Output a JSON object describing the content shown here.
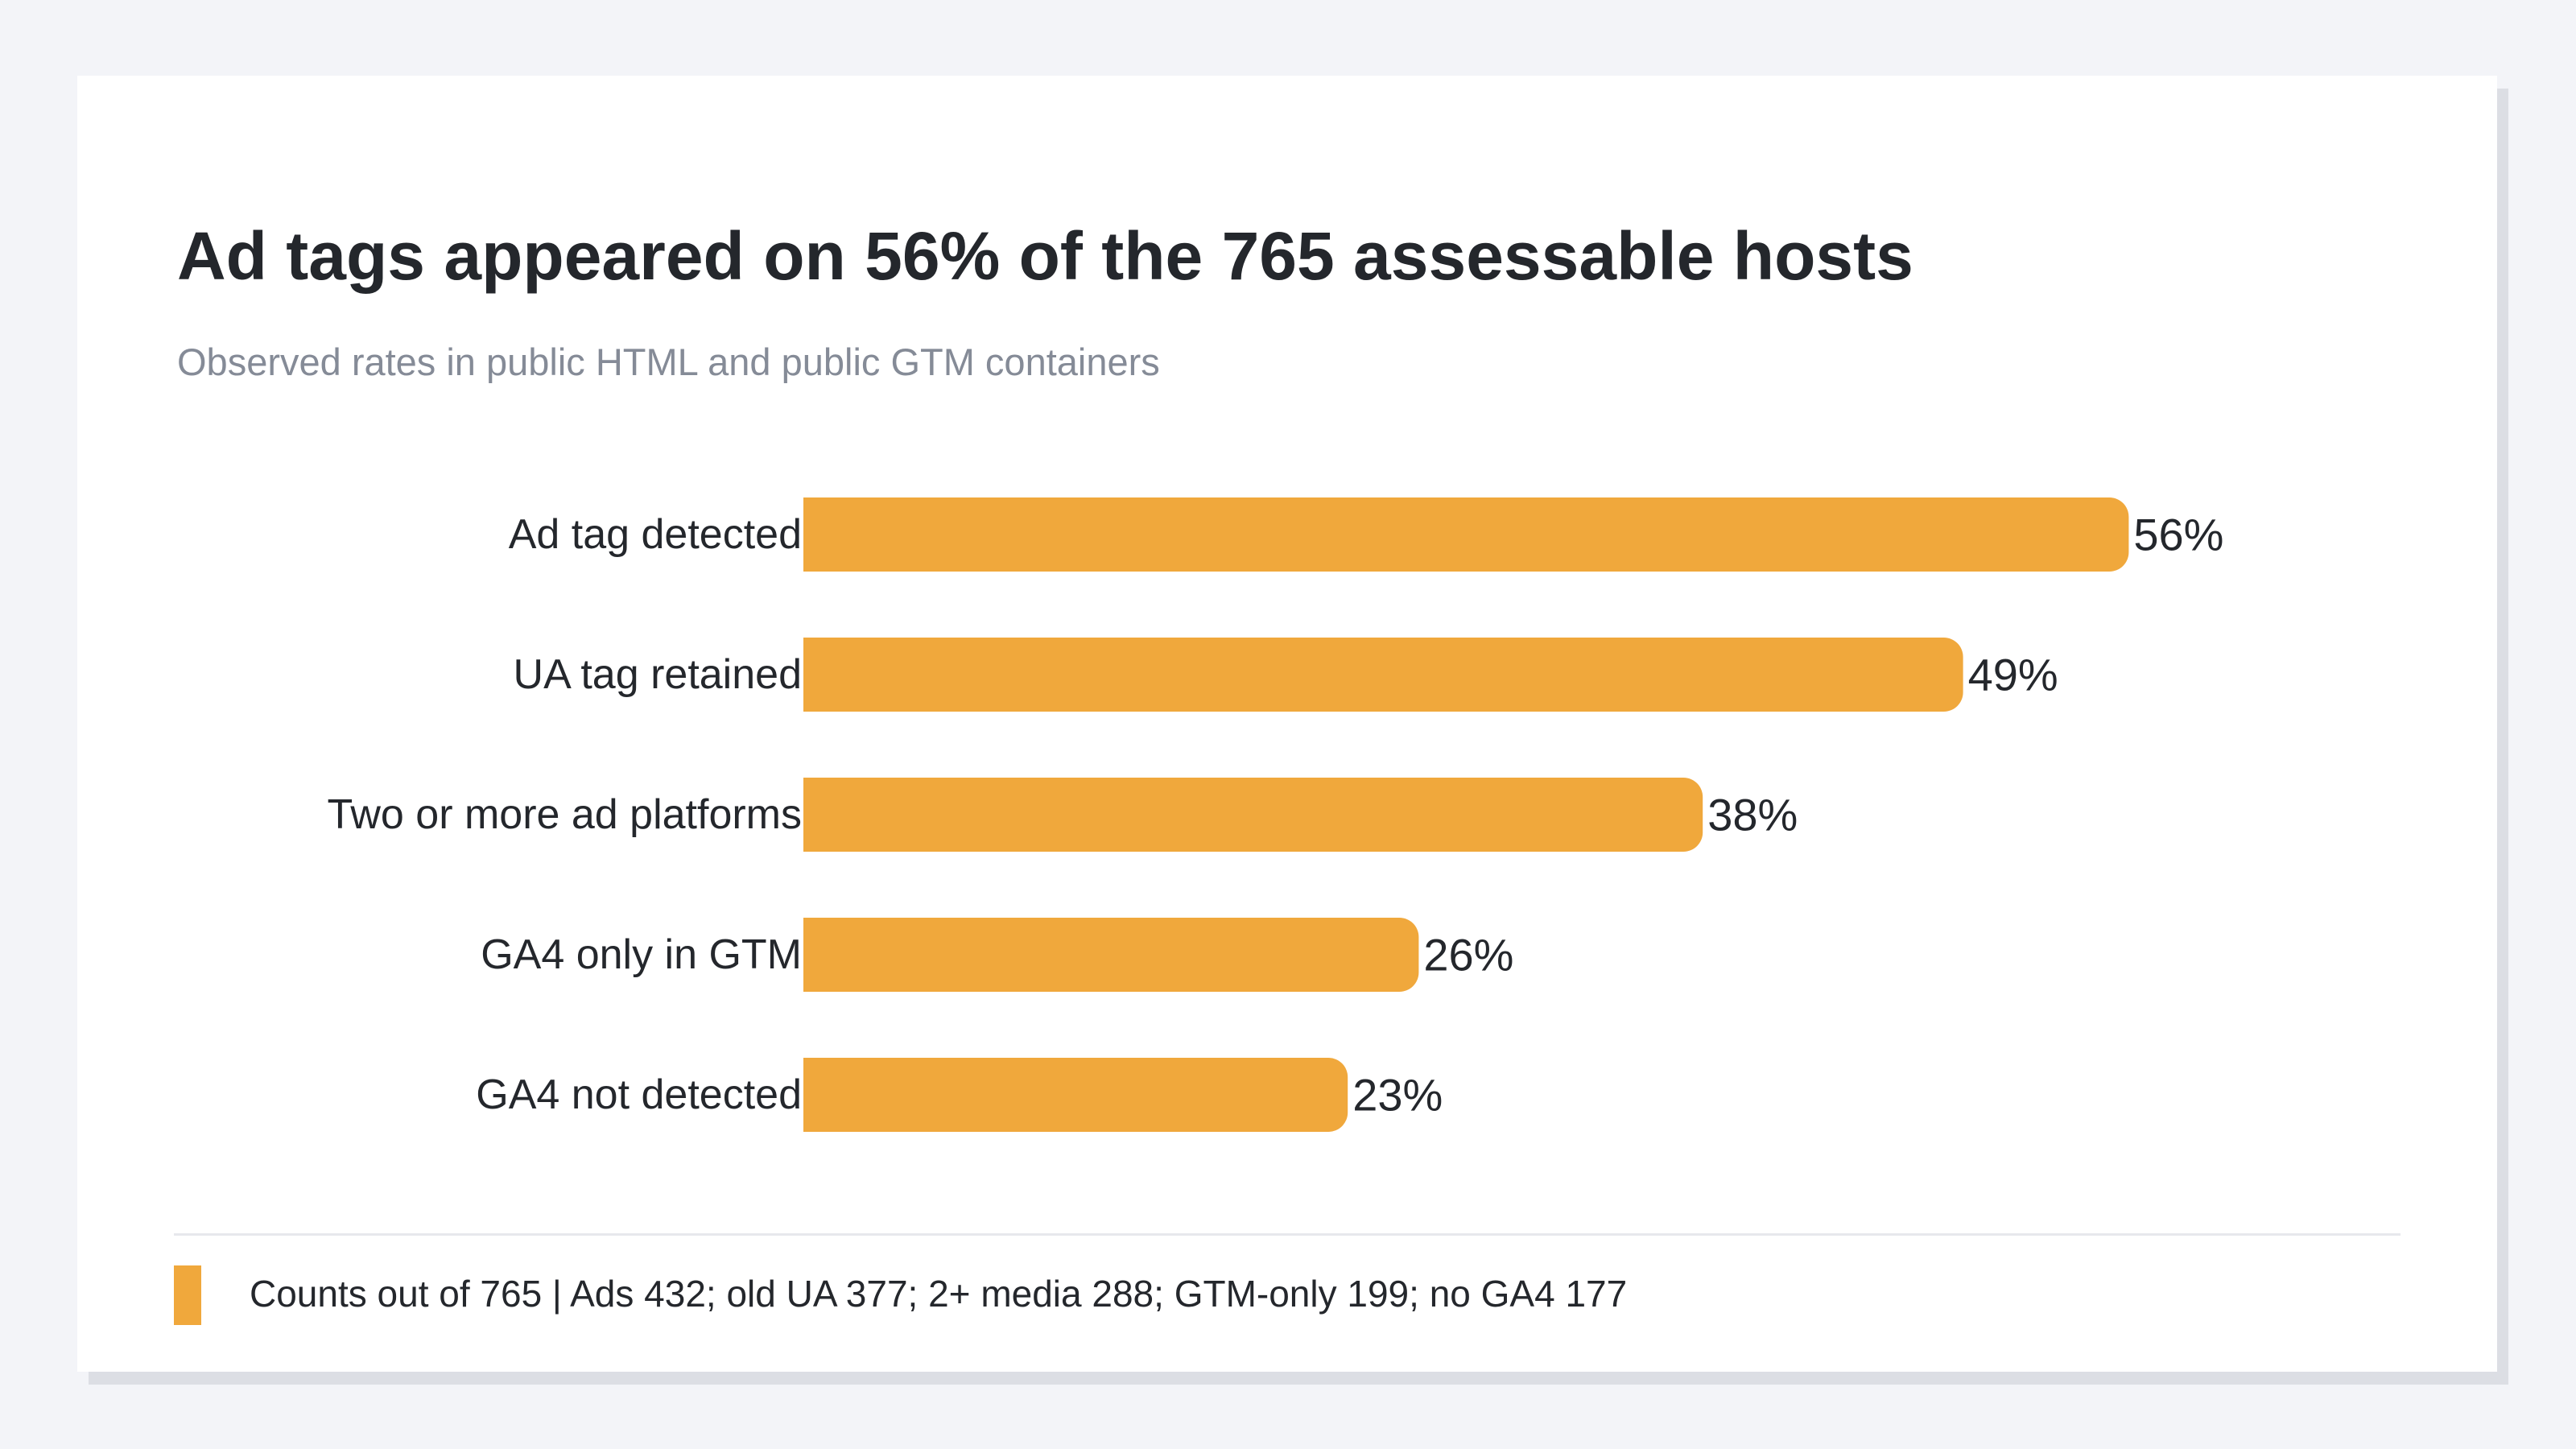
{
  "header": {
    "title": "Ad tags appeared on 56% of the 765 assessable hosts",
    "subtitle": "Observed rates in public HTML and public GTM containers"
  },
  "colors": {
    "bar": "#f0a83c",
    "text": "#24272c",
    "subtitle": "#858b97",
    "background": "#f3f4f8"
  },
  "chart_data": {
    "type": "bar",
    "orientation": "horizontal",
    "title": "Ad tags appeared on 56% of the 765 assessable hosts",
    "subtitle": "Observed rates in public HTML and public GTM containers",
    "categories": [
      "Ad tag detected",
      "UA tag retained",
      "Two or more ad platforms",
      "GA4 only in GTM",
      "GA4 not detected"
    ],
    "values": [
      56,
      49,
      38,
      26,
      23
    ],
    "value_labels": [
      "56%",
      "49%",
      "38%",
      "26%",
      "23%"
    ],
    "unit": "%",
    "xlim": [
      0,
      100
    ],
    "grid": false,
    "legend_position": "bottom-left"
  },
  "legend": {
    "text": "Counts out of 765 | Ads 432; old UA 377; 2+ media 288; GTM-only 199; no GA4 177"
  }
}
